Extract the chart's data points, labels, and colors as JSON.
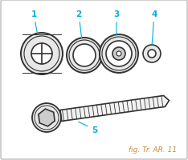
{
  "title": "fig. Tr. AR. 11",
  "title_color": "#c8883c",
  "label_color": "#00aee0",
  "bg_color": "#ffffff",
  "border_color": "#bbbbbb",
  "line_color": "#333333",
  "fill_light": "#e8e8e8",
  "fill_white": "#ffffff",
  "fill_mid": "#cccccc",
  "fig_width": 2.34,
  "fig_height": 2.01,
  "dpi": 100
}
